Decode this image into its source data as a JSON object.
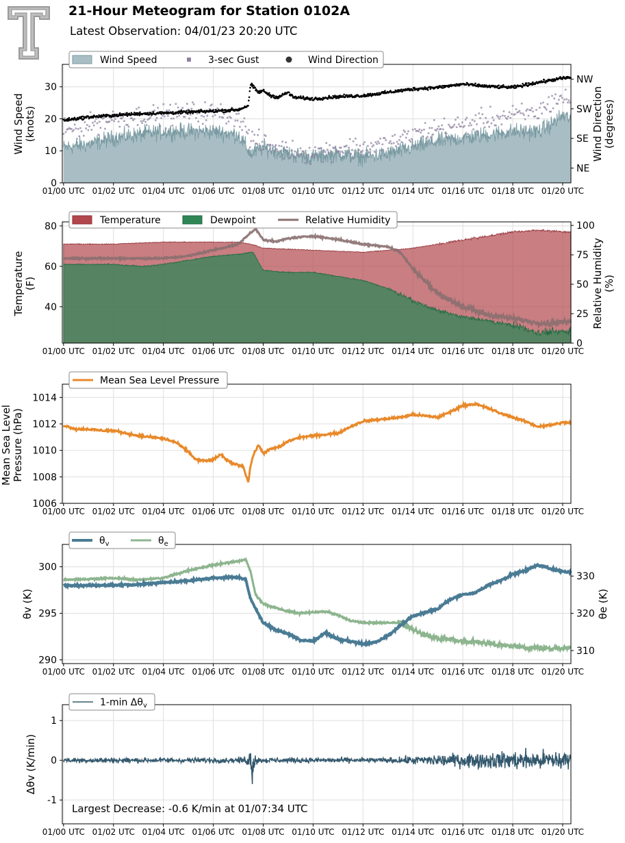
{
  "header": {
    "title": "21-Hour Meteogram for Station 0102A",
    "subtitle": "Latest Observation: 04/01/23 20:20 UTC"
  },
  "colors": {
    "wind_speed": "#7b9ba3",
    "gust": "#8e829f",
    "wind_dir": "#000000",
    "temperature": "#b2474d",
    "dewpoint": "#2f8556",
    "rh": "#8a6f6f",
    "mslp": "#e8892a",
    "theta_v": "#4a7b94",
    "theta_e": "#8db58f",
    "dtheta": "#33586d"
  },
  "x_ticks": [
    "01/00 UTC",
    "01/02 UTC",
    "01/04 UTC",
    "01/06 UTC",
    "01/08 UTC",
    "01/10 UTC",
    "01/12 UTC",
    "01/14 UTC",
    "01/16 UTC",
    "01/18 UTC",
    "01/20 UTC"
  ],
  "annotation": "Largest Decrease: -0.6 K/min at 01/07:34 UTC",
  "chart_data": [
    {
      "type": "area",
      "panel": "wind",
      "ylabel": "Wind Speed\n(knots)",
      "ylabel_right": "Wind Direction\n(degrees)",
      "ylim": [
        0,
        37
      ],
      "yticks": [
        0,
        10,
        20,
        30
      ],
      "right_ticks": [
        "NE",
        "SE",
        "SW",
        "NW"
      ],
      "legend": [
        "Wind Speed",
        "3-sec Gust",
        "Wind Direction"
      ],
      "xlim_hours": [
        -0.05,
        20.33
      ],
      "series": [
        {
          "name": "Wind Speed",
          "x_hours": [
            0,
            1,
            2,
            3,
            4,
            5,
            6,
            7,
            7.5,
            8,
            9,
            10,
            11,
            12,
            13,
            14,
            15,
            16,
            17,
            18,
            19,
            19.5,
            20,
            20.33
          ],
          "values": [
            11,
            12,
            14,
            15,
            16,
            16,
            16,
            15,
            9,
            11,
            9,
            8,
            9,
            8,
            9,
            11,
            13,
            14,
            15,
            16,
            16,
            18,
            21,
            20
          ]
        },
        {
          "name": "3-sec Gust",
          "x_hours": [
            0,
            1,
            2,
            3,
            4,
            5,
            6,
            7,
            7.5,
            8,
            9,
            10,
            11,
            12,
            13,
            14,
            15,
            16,
            17,
            18,
            19,
            19.5,
            20,
            20.33
          ],
          "values": [
            16,
            18,
            20,
            21,
            21,
            22,
            22,
            21,
            14,
            12,
            10,
            9,
            11,
            11,
            12,
            15,
            17,
            18,
            20,
            21,
            22,
            25,
            27,
            25
          ]
        },
        {
          "name": "Wind Direction",
          "x_hours": [
            0,
            1,
            2,
            3,
            4,
            5,
            6,
            7,
            7.4,
            7.5,
            7.8,
            8,
            8.3,
            8.6,
            9,
            9.2,
            10,
            11,
            12,
            13,
            14,
            15,
            16,
            17,
            18,
            19,
            20,
            20.33
          ],
          "values": [
            190,
            200,
            205,
            210,
            212,
            215,
            218,
            222,
            235,
            300,
            275,
            280,
            265,
            260,
            275,
            260,
            255,
            262,
            265,
            275,
            285,
            290,
            300,
            293,
            290,
            305,
            318,
            320
          ]
        }
      ],
      "right_ylim": [
        0,
        360
      ],
      "right_tick_values": [
        45,
        135,
        225,
        315
      ]
    },
    {
      "type": "area",
      "panel": "thermo",
      "ylabel": "Temperature\n(F)",
      "ylabel_right": "Relative Humidity\n(%)",
      "ylim": [
        22,
        82
      ],
      "yticks": [
        40,
        60,
        80
      ],
      "right_ylim": [
        0,
        103
      ],
      "right_yticks": [
        0,
        25,
        50,
        75,
        100
      ],
      "legend": [
        "Temperature",
        "Dewpoint",
        "Relative Humidity"
      ],
      "series": [
        {
          "name": "Temperature",
          "x_hours": [
            0,
            2,
            4,
            6,
            7,
            7.5,
            8,
            10,
            12,
            13,
            14,
            15,
            16,
            17,
            18,
            19,
            20,
            20.33
          ],
          "values": [
            71,
            71,
            72,
            72,
            72,
            71,
            69,
            68,
            67,
            68,
            69,
            71,
            73,
            75,
            77,
            78,
            77,
            77
          ]
        },
        {
          "name": "Dewpoint",
          "x_hours": [
            0,
            2,
            3.2,
            4,
            5,
            6,
            7,
            7.6,
            8,
            9,
            10,
            11,
            12,
            13,
            14,
            15,
            16,
            17,
            18,
            19,
            20,
            20.33
          ],
          "values": [
            61,
            61,
            60,
            61,
            63,
            65,
            66,
            67,
            58,
            57,
            57,
            55,
            53,
            49,
            43,
            38,
            35,
            33,
            31,
            27,
            28,
            28
          ]
        },
        {
          "name": "Relative Humidity",
          "x_hours": [
            0,
            2,
            3,
            4,
            5,
            6,
            7,
            7.4,
            7.7,
            8,
            8.5,
            9,
            10,
            11,
            12,
            13,
            13.5,
            14,
            15,
            16,
            17,
            18,
            19,
            19.5,
            20,
            20.33
          ],
          "values": [
            72,
            72,
            72,
            72,
            74,
            79,
            84,
            92,
            97,
            88,
            86,
            89,
            91,
            88,
            84,
            82,
            77,
            63,
            42,
            31,
            24,
            21,
            17,
            17,
            18,
            18
          ]
        }
      ]
    },
    {
      "type": "line",
      "panel": "pressure",
      "ylabel": "Mean Sea Level\nPressure (hPa)",
      "ylim": [
        1006,
        1015
      ],
      "yticks": [
        1006,
        1008,
        1010,
        1012,
        1014
      ],
      "legend": [
        "Mean Sea Level Pressure"
      ],
      "series": [
        {
          "name": "Mean Sea Level Pressure",
          "x_hours": [
            0,
            0.5,
            1,
            1.5,
            2,
            2.5,
            3,
            3.5,
            4,
            4.5,
            5,
            5.3,
            5.7,
            6,
            6.3,
            6.5,
            6.8,
            7,
            7.2,
            7.4,
            7.5,
            7.6,
            7.8,
            8,
            8.3,
            8.7,
            9,
            9.5,
            10,
            10.5,
            11,
            11.5,
            12,
            12.5,
            13,
            13.5,
            14,
            14.5,
            15,
            15.5,
            16,
            16.5,
            17,
            17.5,
            18,
            18.5,
            19,
            19.5,
            20,
            20.33
          ],
          "values": [
            1011.9,
            1011.6,
            1011.6,
            1011.5,
            1011.5,
            1011.3,
            1011.1,
            1011.0,
            1010.9,
            1010.6,
            1009.9,
            1009.3,
            1009.2,
            1009.3,
            1009.7,
            1009.3,
            1009.0,
            1008.9,
            1008.8,
            1007.6,
            1008.9,
            1009.6,
            1010.4,
            1009.8,
            1010.1,
            1010.3,
            1010.7,
            1011.0,
            1011.1,
            1011.2,
            1011.3,
            1011.8,
            1012.2,
            1012.3,
            1012.4,
            1012.5,
            1012.7,
            1012.6,
            1012.5,
            1012.9,
            1013.4,
            1013.5,
            1013.2,
            1012.8,
            1012.5,
            1012.2,
            1011.8,
            1011.9,
            1012.1,
            1012.1
          ]
        }
      ]
    },
    {
      "type": "line",
      "panel": "theta",
      "ylabel": "θv (K)",
      "ylabel_right": "θe (K)",
      "ylim": [
        289.6,
        302.4
      ],
      "yticks": [
        290,
        295,
        300
      ],
      "right_ylim": [
        306.5,
        338.5
      ],
      "right_yticks": [
        310,
        320,
        330
      ],
      "legend": [
        "θv",
        "θe"
      ],
      "series": [
        {
          "name": "θv",
          "x_hours": [
            0,
            1,
            2,
            3,
            4,
            5,
            6,
            7,
            7.3,
            7.5,
            7.7,
            8,
            8.5,
            9,
            9.5,
            10,
            10.5,
            11,
            11.5,
            12,
            12.5,
            13,
            13.5,
            14,
            15,
            15.5,
            16,
            16.5,
            17,
            17.5,
            18,
            18.5,
            19,
            19.5,
            20,
            20.33
          ],
          "values": [
            298.0,
            298.0,
            298.0,
            298.1,
            298.3,
            298.5,
            298.8,
            298.9,
            298.6,
            296.5,
            295.5,
            294.0,
            293.2,
            292.8,
            292.1,
            292.0,
            292.9,
            292.2,
            292.0,
            291.7,
            291.9,
            292.6,
            293.7,
            294.7,
            295.5,
            296.5,
            297.0,
            297.2,
            298.0,
            298.5,
            299.2,
            299.6,
            300.2,
            299.8,
            299.5,
            299.4
          ]
        },
        {
          "name": "θe",
          "x_hours": [
            0,
            1,
            2,
            3,
            4,
            5,
            6,
            7,
            7.3,
            7.5,
            7.7,
            8,
            8.5,
            9,
            9.5,
            10,
            10.5,
            11,
            11.5,
            12,
            12.5,
            13,
            13.5,
            14,
            14.5,
            15,
            15.5,
            16,
            16.5,
            17,
            17.5,
            18,
            18.5,
            19,
            19.5,
            20,
            20.33
          ],
          "values": [
            329.0,
            329.2,
            329.5,
            329.0,
            329.5,
            331.5,
            333.0,
            334.0,
            334.5,
            331.0,
            325.0,
            322.5,
            321.5,
            320.5,
            320.0,
            320.3,
            320.5,
            319.5,
            318.0,
            317.5,
            317.4,
            317.5,
            317.5,
            315.5,
            314.2,
            313.4,
            313.0,
            312.6,
            312.3,
            312.0,
            311.5,
            311.2,
            310.8,
            310.6,
            310.6,
            310.7,
            310.9
          ]
        }
      ]
    },
    {
      "type": "line",
      "panel": "dtheta",
      "ylabel": "Δθv (K/min)",
      "ylim": [
        -1.6,
        1.4
      ],
      "yticks": [
        -1,
        0,
        1
      ],
      "legend": [
        "1-min Δθv"
      ],
      "series": [
        {
          "name": "1-min Δθv",
          "envelope_x_hours": [
            0,
            7,
            7.4,
            7.56,
            7.7,
            8,
            13,
            15,
            17,
            19,
            20.33
          ],
          "envelope_values": [
            0.08,
            0.08,
            0.15,
            0.6,
            0.12,
            0.08,
            0.08,
            0.18,
            0.25,
            0.3,
            0.3
          ],
          "largest_decrease": {
            "x_hours": 7.567,
            "value": -0.6
          }
        }
      ]
    }
  ]
}
